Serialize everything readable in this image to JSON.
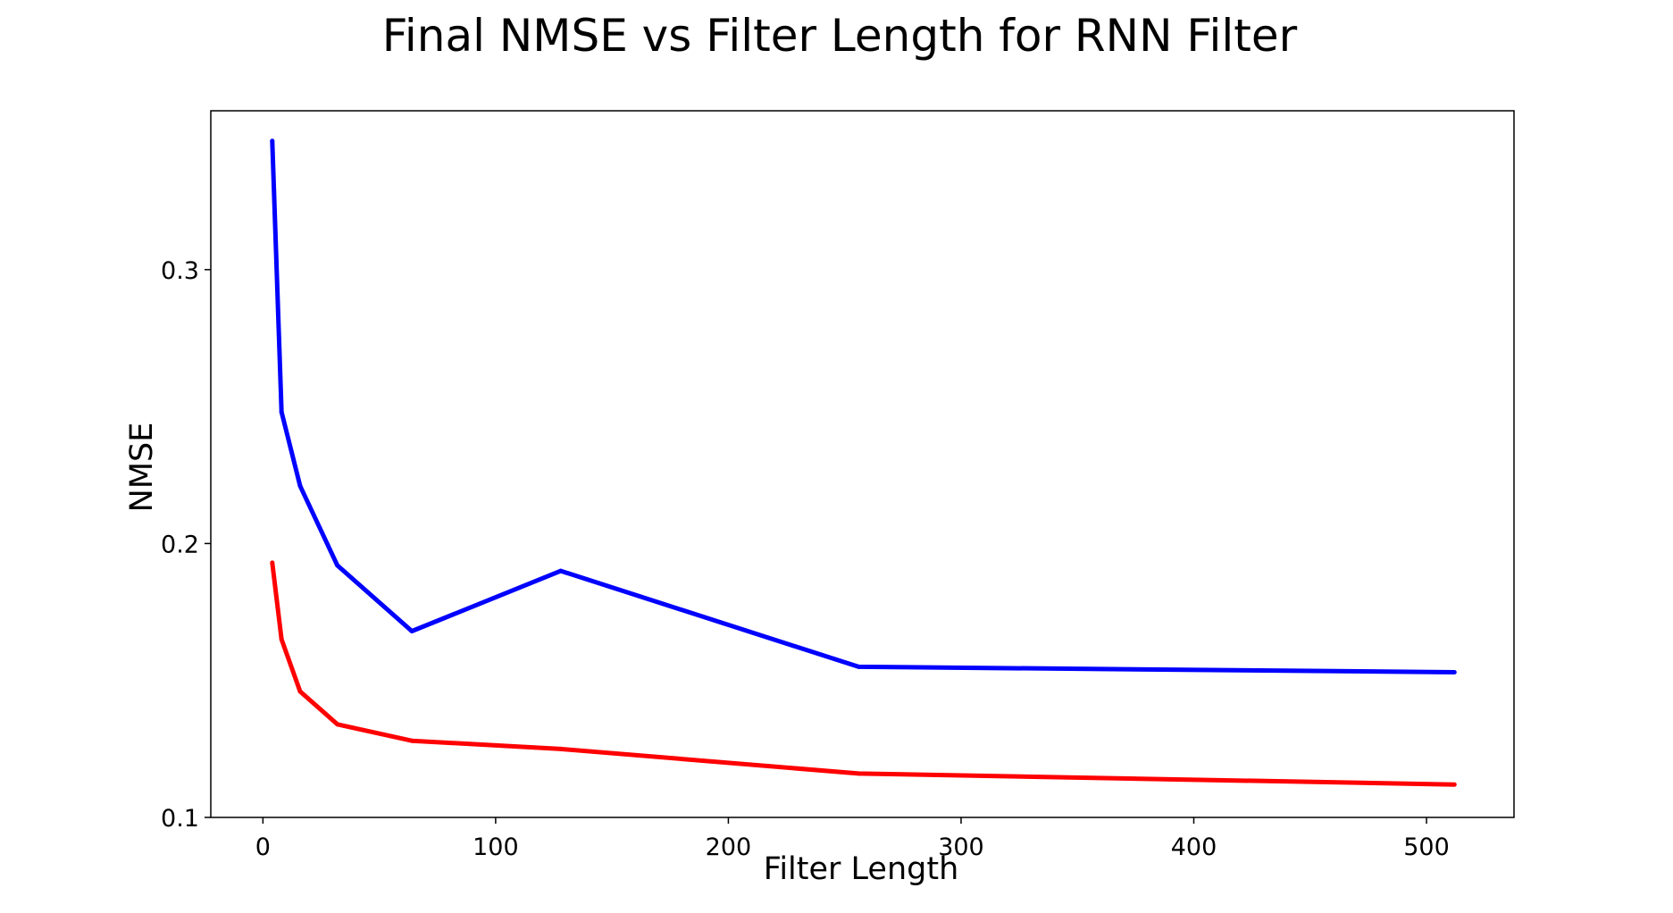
{
  "chart_data": {
    "type": "line",
    "title": "Final NMSE vs Filter Length for RNN Filter",
    "xlabel": "Filter Length",
    "ylabel": "NMSE",
    "xlim": [
      -22.4,
      537.6
    ],
    "ylim": [
      0.1,
      0.358
    ],
    "xticks": [
      0,
      100,
      200,
      300,
      400,
      500
    ],
    "yticks": [
      0.1,
      0.2,
      0.3
    ],
    "ytick_labels": [
      "0.1",
      "0.2",
      "0.3"
    ],
    "grid": false,
    "legend": "none",
    "x": [
      4,
      8,
      16,
      32,
      64,
      128,
      256,
      512
    ],
    "series": [
      {
        "color": "#0000ff",
        "values": [
          0.347,
          0.248,
          0.221,
          0.192,
          0.168,
          0.19,
          0.155,
          0.153
        ]
      },
      {
        "color": "#ff0000",
        "values": [
          0.193,
          0.165,
          0.146,
          0.134,
          0.128,
          0.125,
          0.116,
          0.112
        ]
      }
    ]
  }
}
